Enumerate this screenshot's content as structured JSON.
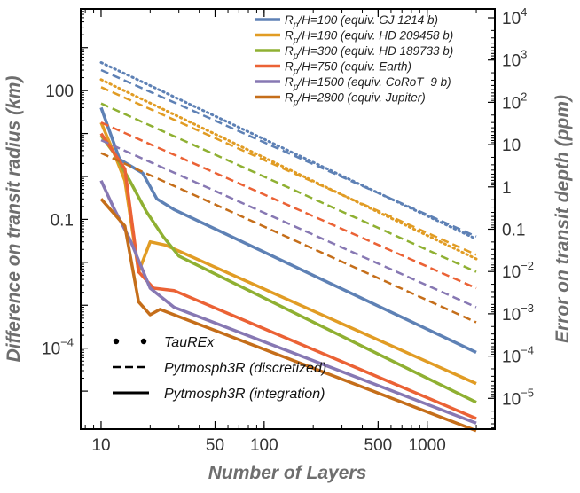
{
  "chart_data": {
    "type": "line",
    "xscale": "log",
    "yscale": "log",
    "xlabel": "Number of Layers",
    "ylabel_left": "Difference on transit radius (km)",
    "ylabel_right": "Error on transit depth (ppm)",
    "xlim": [
      7.5,
      2600
    ],
    "ylim": [
      1.3e-06,
      8000
    ],
    "x_ticks": [
      10,
      50,
      100,
      500,
      1000
    ],
    "x_tick_labels": [
      "10",
      "50",
      "100",
      "500",
      "1000"
    ],
    "y_left_ticks": [
      {
        "value": 100,
        "base": "100",
        "exp": ""
      },
      {
        "value": 0.1,
        "base": "0.1",
        "exp": ""
      },
      {
        "value": 0.0001,
        "base": "10",
        "exp": "−4"
      }
    ],
    "y_right_ticks": [
      {
        "base": "10",
        "exp": "4"
      },
      {
        "base": "10",
        "exp": "3"
      },
      {
        "base": "10",
        "exp": "2"
      },
      {
        "base": "10",
        "exp": ""
      },
      {
        "base": "1",
        "exp": ""
      },
      {
        "base": "0.1",
        "exp": ""
      },
      {
        "base": "10",
        "exp": "−2"
      },
      {
        "base": "10",
        "exp": "−3"
      },
      {
        "base": "10",
        "exp": "−4"
      },
      {
        "base": "10",
        "exp": "−5"
      }
    ],
    "series": [
      {
        "name": "Rp/H=100 (equiv. GJ 1214 b)",
        "label_pre": "R",
        "label_sub": "p",
        "label_post": "/H=100 (equiv. GJ 1214 b)",
        "color": "#5e81b5",
        "integration": {
          "x": [
            10,
            13,
            18,
            22,
            28,
            2000
          ],
          "y": [
            40,
            2.5,
            1.2,
            0.3,
            0.17,
            8e-05
          ]
        },
        "discretized": {
          "x": [
            10,
            2000
          ],
          "y": [
            300,
            0.04
          ]
        },
        "taurex": {
          "x": [
            10,
            2000
          ],
          "y": [
            450,
            0.035
          ]
        }
      },
      {
        "name": "Rp/H=180 (equiv. HD 209458 b)",
        "label_pre": "R",
        "label_sub": "p",
        "label_post": "/H=180 (equiv. HD 209458 b)",
        "color": "#e19c24",
        "integration": {
          "x": [
            10,
            12,
            14,
            17,
            20,
            25,
            2000
          ],
          "y": [
            18,
            3.5,
            0.8,
            0.006,
            0.03,
            0.025,
            1.5e-05
          ]
        },
        "discretized": {
          "x": [
            10,
            2000
          ],
          "y": [
            120,
            0.015
          ]
        },
        "taurex": {
          "x": [
            10,
            2000
          ],
          "y": [
            180,
            0.012
          ]
        }
      },
      {
        "name": "Rp/H=300 (equiv. HD 189733 b)",
        "label_pre": "R",
        "label_sub": "p",
        "label_post": "/H=300 (equiv. HD 189733 b)",
        "color": "#8fb032",
        "integration": {
          "x": [
            10,
            12,
            15,
            19,
            24,
            30,
            2000
          ],
          "y": [
            9,
            3.5,
            0.8,
            0.15,
            0.04,
            0.014,
            5.5e-06
          ]
        },
        "discretized": {
          "x": [
            10,
            2000
          ],
          "y": [
            50,
            0.006
          ]
        }
      },
      {
        "name": "Rp/H=750 (equiv. Earth)",
        "label_pre": "R",
        "label_sub": "p",
        "label_post": "/H=750 (equiv. Earth)",
        "color": "#eb6235",
        "integration": {
          "x": [
            10,
            14,
            17,
            21,
            28,
            2000
          ],
          "y": [
            10,
            1.5,
            0.006,
            0.0025,
            0.0022,
            2.3e-06
          ]
        },
        "discretized": {
          "x": [
            10,
            2000
          ],
          "y": [
            18,
            0.0025
          ]
        }
      },
      {
        "name": "Rp/H=1500 (equiv. CoRoT−9 b)",
        "label_pre": "R",
        "label_sub": "p",
        "label_post": "/H=1500 (equiv. CoRoT−9 b)",
        "color": "#8778b3",
        "integration": {
          "x": [
            10,
            12,
            15,
            20,
            28,
            2000
          ],
          "y": [
            0.8,
            0.18,
            0.035,
            0.0025,
            0.0009,
            1.8e-06
          ]
        },
        "discretized": {
          "x": [
            10,
            2000
          ],
          "y": [
            7,
            0.0009
          ]
        }
      },
      {
        "name": "Rp/H=2800 (equiv. Jupiter)",
        "label_pre": "R",
        "label_sub": "p",
        "label_post": "/H=2800 (equiv. Jupiter)",
        "color": "#c56e1a",
        "integration": {
          "x": [
            10,
            14,
            17,
            20,
            23,
            28,
            2000
          ],
          "y": [
            0.3,
            0.07,
            0.0012,
            0.0006,
            0.0008,
            0.0006,
            1.2e-06
          ]
        },
        "discretized": {
          "x": [
            10,
            2000
          ],
          "y": [
            3.5,
            0.0004
          ]
        }
      }
    ],
    "style_legend": [
      {
        "key": "taurex",
        "label": "TauREx"
      },
      {
        "key": "discretized",
        "label": "Pytmosph3R (discretized)"
      },
      {
        "key": "integration",
        "label": "Pytmosph3R (integration)"
      }
    ]
  }
}
